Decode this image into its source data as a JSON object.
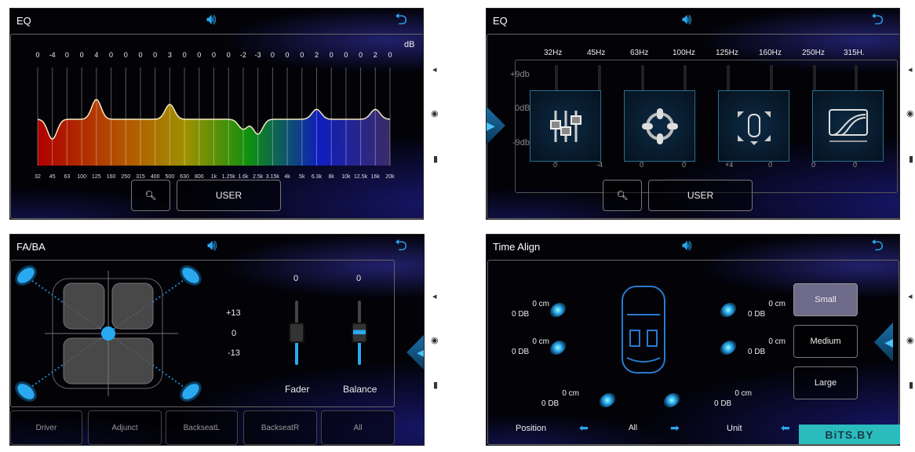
{
  "colors": {
    "accent": "#2aa8f0",
    "watermark": "#2bbdbd"
  },
  "eq": {
    "title": "EQ",
    "unit": "dB",
    "values": [
      0,
      -4,
      0,
      0,
      4,
      0,
      0,
      0,
      0,
      3,
      0,
      0,
      0,
      0,
      -2,
      -3,
      0,
      0,
      0,
      2,
      0,
      0,
      0,
      2,
      0
    ],
    "frequencies": [
      "32",
      "45",
      "63",
      "100",
      "125",
      "160",
      "250",
      "315",
      "400",
      "500",
      "630",
      "800",
      "1k",
      "1.25k",
      "1.6k",
      "2.5k",
      "3.15k",
      "4k",
      "5k",
      "6.3k",
      "8k",
      "10k",
      "12.5k",
      "16k",
      "20k"
    ],
    "zoom_icon": "zoom-out-icon",
    "preset": "USER"
  },
  "eq2": {
    "title": "EQ",
    "frequencies": [
      "32Hz",
      "45Hz",
      "63Hz",
      "100Hz",
      "125Hz",
      "160Hz",
      "250Hz",
      "315H."
    ],
    "values": [
      "0",
      "-4",
      "0",
      "0",
      "+4",
      "0",
      "0",
      "0"
    ],
    "scale": [
      "+9db",
      "0dB",
      "-9db"
    ],
    "tiles": [
      "equalizer-icon",
      "fader-balance-icon",
      "speaker-layout-icon",
      "crossover-icon"
    ],
    "zoom_icon": "zoom-in-icon",
    "preset": "USER"
  },
  "faba": {
    "title": "FA/BA",
    "scale": [
      "+13",
      "0",
      "-13"
    ],
    "fader": {
      "label": "Fader",
      "value": "0",
      "level": 0
    },
    "balance": {
      "label": "Balance",
      "value": "0",
      "level": 0
    },
    "seats": [
      "Driver",
      "Adjunct",
      "BackseatL",
      "BackseatR",
      "All"
    ]
  },
  "timealign": {
    "title": "Time Align",
    "speakers": [
      {
        "cm": "0 cm",
        "db": "0 DB"
      },
      {
        "cm": "0 cm",
        "db": "0 DB"
      },
      {
        "cm": "0 cm",
        "db": "0 DB"
      },
      {
        "cm": "0 cm",
        "db": "0 DB"
      },
      {
        "cm": "0 cm",
        "db": "0 DB"
      },
      {
        "cm": "0 cm",
        "db": "0 DB"
      }
    ],
    "sizes": [
      "Small",
      "Medium",
      "Large"
    ],
    "selected_size": "Small",
    "position_label": "Position",
    "position_value": "All",
    "unit_label": "Unit"
  },
  "watermark": "BiTS.BY"
}
